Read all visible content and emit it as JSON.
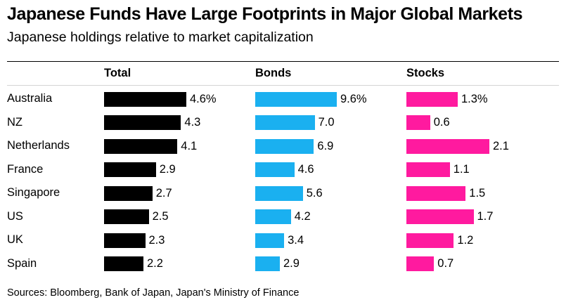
{
  "title": "Japanese Funds Have Large Footprints in Major Global Markets",
  "subtitle": "Japanese holdings relative to market capitalization",
  "source": "Sources: Bloomberg, Bank of Japan, Japan's Ministry of Finance",
  "chart_data": {
    "type": "bar",
    "orientation": "horizontal",
    "title": "Japanese Funds Have Large Footprints in Major Global Markets",
    "subtitle": "Japanese holdings relative to market capitalization",
    "categories": [
      "Australia",
      "NZ",
      "Netherlands",
      "France",
      "Singapore",
      "US",
      "UK",
      "Spain"
    ],
    "series": [
      {
        "name": "Total",
        "color": "#000000",
        "values": [
          4.6,
          4.3,
          4.1,
          2.9,
          2.7,
          2.5,
          2.3,
          2.2
        ],
        "labels": [
          "4.6%",
          "4.3",
          "4.1",
          "2.9",
          "2.7",
          "2.5",
          "2.3",
          "2.2"
        ]
      },
      {
        "name": "Bonds",
        "color": "#1ab0f0",
        "values": [
          9.6,
          7.0,
          6.9,
          4.6,
          5.6,
          4.2,
          3.4,
          2.9
        ],
        "labels": [
          "9.6%",
          "7.0",
          "6.9",
          "4.6",
          "5.6",
          "4.2",
          "3.4",
          "2.9"
        ]
      },
      {
        "name": "Stocks",
        "color": "#ff1a9f",
        "values": [
          1.3,
          0.6,
          2.1,
          1.1,
          1.5,
          1.7,
          1.2,
          0.7
        ],
        "labels": [
          "1.3%",
          "0.6",
          "2.1",
          "1.1",
          "1.5",
          "1.7",
          "1.2",
          "0.7"
        ]
      }
    ],
    "legend": "none",
    "grid": false
  }
}
